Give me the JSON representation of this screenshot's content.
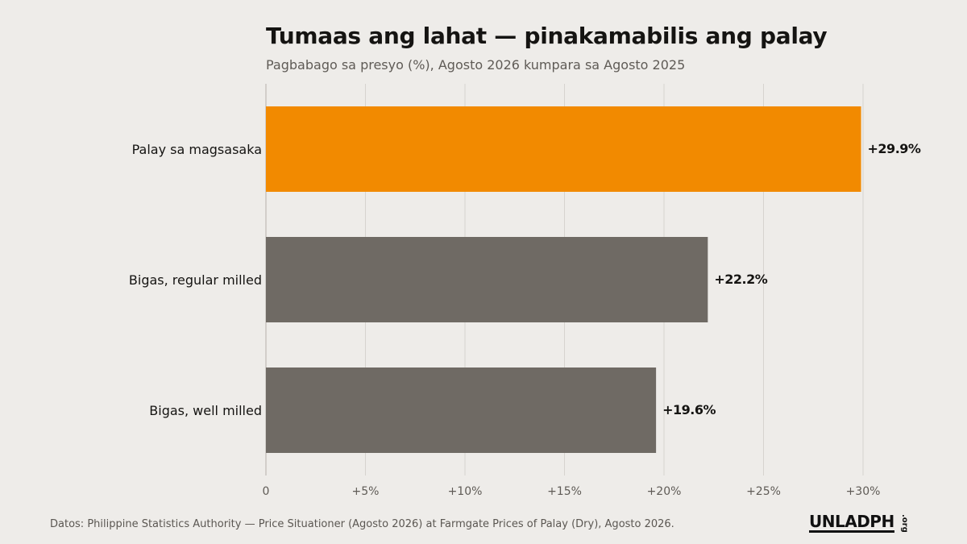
{
  "chart_data": {
    "type": "bar",
    "orientation": "horizontal",
    "title": "Tumaas ang lahat — pinakamabilis ang palay",
    "subtitle": "Pagbabago sa presyo (%), Agosto 2026 kumpara sa Agosto 2025",
    "categories": [
      "Palay sa magsasaka",
      "Bigas, regular milled",
      "Bigas, well milled"
    ],
    "values": [
      29.9,
      22.2,
      19.6
    ],
    "data_labels": [
      "+29.9%",
      "+22.2%",
      "+19.6%"
    ],
    "bar_colors": [
      "#f28a00",
      "#6f6a64",
      "#6f6a64"
    ],
    "xlim": [
      0,
      30
    ],
    "x_ticks": [
      0,
      5,
      10,
      15,
      20,
      25,
      30
    ],
    "x_tick_labels": [
      "0",
      "+5%",
      "+10%",
      "+15%",
      "+20%",
      "+25%",
      "+30%"
    ],
    "xlabel": "",
    "ylabel": "",
    "grid": "vertical",
    "legend": "none"
  },
  "footer": {
    "source": "Datos: Philippine Statistics Authority — Price Situationer (Agosto 2026) at Farmgate Prices of Palay (Dry), Agosto 2026.",
    "logo": "UNLADPH",
    "logo_tld": ".org"
  },
  "colors": {
    "background": "#eeece9",
    "grid": "#d6d3cf",
    "axis": "#b5b1ac",
    "text": "#151412",
    "muted": "#5f5b56"
  }
}
